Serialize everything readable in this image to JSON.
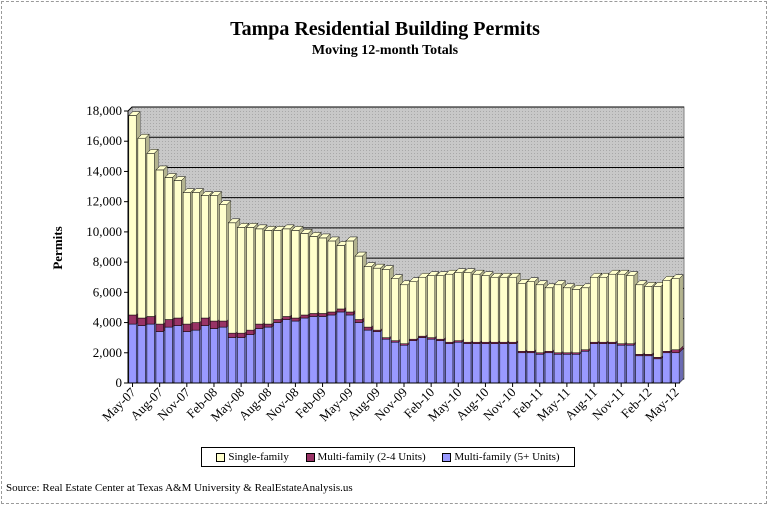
{
  "chart_data": {
    "type": "bar",
    "stacked": true,
    "title": "Tampa Residential Building Permits",
    "subtitle": "Moving 12-month Totals",
    "ylabel": "Permits",
    "ylim": [
      0,
      18000
    ],
    "yticks": [
      "0",
      "2,000",
      "4,000",
      "6,000",
      "8,000",
      "10,000",
      "12,000",
      "14,000",
      "16,000",
      "18,000"
    ],
    "xtick_labels": [
      "May-07",
      "Aug-07",
      "Nov-07",
      "Feb-08",
      "May-08",
      "Aug-08",
      "Nov-08",
      "Feb-09",
      "May-09",
      "Aug-09",
      "Nov-09",
      "Feb-10",
      "May-10",
      "Aug-10",
      "Nov-10",
      "Feb-11",
      "May-11",
      "Aug-11",
      "Nov-11",
      "Feb-12",
      "May-12"
    ],
    "categories": [
      "May-07",
      "Jun-07",
      "Jul-07",
      "Aug-07",
      "Sep-07",
      "Oct-07",
      "Nov-07",
      "Dec-07",
      "Jan-08",
      "Feb-08",
      "Mar-08",
      "Apr-08",
      "May-08",
      "Jun-08",
      "Jul-08",
      "Aug-08",
      "Sep-08",
      "Oct-08",
      "Nov-08",
      "Dec-08",
      "Jan-09",
      "Feb-09",
      "Mar-09",
      "Apr-09",
      "May-09",
      "Jun-09",
      "Jul-09",
      "Aug-09",
      "Sep-09",
      "Oct-09",
      "Nov-09",
      "Dec-09",
      "Jan-10",
      "Feb-10",
      "Mar-10",
      "Apr-10",
      "May-10",
      "Jun-10",
      "Jul-10",
      "Aug-10",
      "Sep-10",
      "Oct-10",
      "Nov-10",
      "Dec-10",
      "Jan-11",
      "Feb-11",
      "Mar-11",
      "Apr-11",
      "May-11",
      "Jun-11",
      "Jul-11",
      "Aug-11",
      "Sep-11",
      "Oct-11",
      "Nov-11",
      "Dec-11",
      "Jan-12",
      "Feb-12",
      "Mar-12",
      "Apr-12",
      "May-12"
    ],
    "series": [
      {
        "name": "Multi-family (5+ Units)",
        "color": "#9999ff",
        "values": [
          3900,
          3800,
          3900,
          3400,
          3700,
          3800,
          3400,
          3500,
          3800,
          3600,
          3700,
          3000,
          3000,
          3200,
          3600,
          3700,
          4000,
          4200,
          4100,
          4300,
          4400,
          4400,
          4500,
          4700,
          4500,
          4000,
          3500,
          3400,
          2900,
          2700,
          2500,
          2800,
          3000,
          2900,
          2800,
          2600,
          2700,
          2600,
          2600,
          2600,
          2600,
          2600,
          2600,
          2000,
          2000,
          1900,
          2000,
          1900,
          1900,
          1900,
          2100,
          2600,
          2600,
          2600,
          2500,
          2500,
          1800,
          1800,
          1600,
          2000,
          2000
        ]
      },
      {
        "name": "Multi-family (2-4 Units)",
        "color": "#993366",
        "values": [
          600,
          500,
          500,
          500,
          500,
          500,
          500,
          500,
          500,
          500,
          400,
          300,
          300,
          300,
          300,
          200,
          200,
          200,
          200,
          200,
          200,
          200,
          200,
          200,
          200,
          200,
          200,
          100,
          100,
          100,
          100,
          100,
          100,
          100,
          100,
          100,
          100,
          100,
          100,
          100,
          100,
          100,
          100,
          100,
          100,
          100,
          100,
          100,
          100,
          100,
          100,
          100,
          100,
          100,
          100,
          100,
          100,
          100,
          100,
          100,
          200
        ]
      },
      {
        "name": "Single-family",
        "color": "#ffffcc",
        "values": [
          13200,
          11900,
          10800,
          10200,
          9400,
          9100,
          8700,
          8600,
          8100,
          8300,
          7700,
          7300,
          7000,
          6800,
          6300,
          6200,
          5900,
          5800,
          5800,
          5400,
          5100,
          5000,
          4700,
          4200,
          4700,
          4200,
          4000,
          4100,
          4500,
          4100,
          3900,
          3800,
          3900,
          4100,
          4200,
          4500,
          4500,
          4600,
          4500,
          4400,
          4300,
          4300,
          4300,
          4500,
          4600,
          4500,
          4200,
          4500,
          4300,
          4200,
          4100,
          4300,
          4300,
          4500,
          4600,
          4500,
          4600,
          4500,
          4700,
          4700,
          4700
        ]
      }
    ],
    "legend_position": "bottom",
    "grid": true,
    "plot_background": "#c0c0c0",
    "source_text": "Source: Real Estate Center at Texas A&M University & RealEstateAnalysis.us"
  }
}
